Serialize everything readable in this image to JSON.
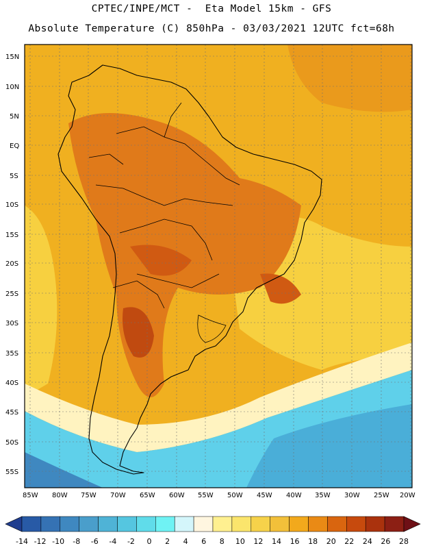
{
  "header": {
    "line1": "CPTEC/INPE/MCT -  Eta Model 15km - GFS",
    "line2": "Absolute Temperature (C) 850hPa - 03/03/2021 12UTC fct=68h"
  },
  "map": {
    "lat_labels": [
      "15N",
      "10N",
      "5N",
      "EQ",
      "5S",
      "10S",
      "15S",
      "20S",
      "25S",
      "30S",
      "35S",
      "40S",
      "45S",
      "50S",
      "55S"
    ],
    "lon_labels": [
      "85W",
      "80W",
      "75W",
      "70W",
      "65W",
      "60W",
      "55W",
      "50W",
      "45W",
      "40W",
      "35W",
      "30W",
      "25W",
      "20W"
    ],
    "colors": {
      "ocean_warm": "#f0b020",
      "hot": "#e07a1a",
      "very_hot": "#d05a12",
      "mild": "#f7d040",
      "cool_band": "#fff3c0",
      "cold": "#5fd0ea",
      "colder": "#4aaed8",
      "coast": "#000000",
      "grid": "#707070"
    }
  },
  "colorbar": {
    "ticks": [
      "-14",
      "-12",
      "-10",
      "-8",
      "-6",
      "-4",
      "-2",
      "0",
      "2",
      "4",
      "6",
      "8",
      "10",
      "12",
      "14",
      "16",
      "18",
      "20",
      "22",
      "24",
      "26",
      "28"
    ],
    "colors": [
      "#1f3d8f",
      "#285aa6",
      "#3572b4",
      "#3f88c0",
      "#4a9ecb",
      "#4fb3d6",
      "#55c6e0",
      "#60dcea",
      "#6ff2f4",
      "#d4f6fb",
      "#fff6e0",
      "#fff090",
      "#fbe56c",
      "#f6d24a",
      "#f2c03a",
      "#f2a91c",
      "#ea8a15",
      "#d9650f",
      "#c74a0d",
      "#aa320d",
      "#8c1f14",
      "#6e1016"
    ]
  }
}
